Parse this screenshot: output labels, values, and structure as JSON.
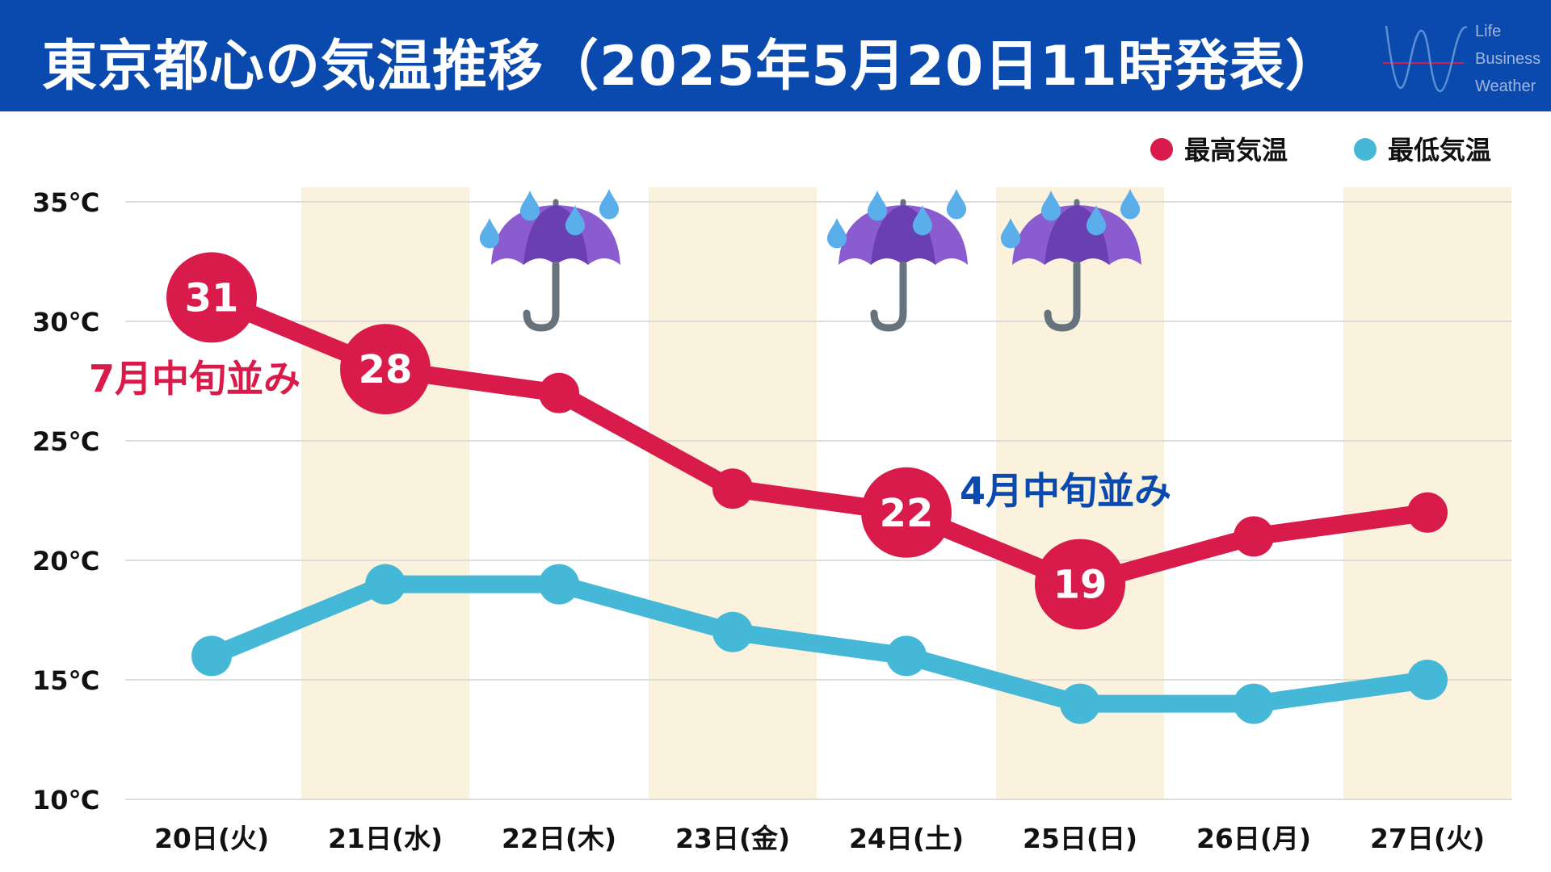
{
  "header": {
    "title": "東京都心の気温推移（2025年5月20日11時発表）",
    "logo_words": [
      "Life",
      "Business",
      "Weather"
    ]
  },
  "colors": {
    "header_bg": "#0a49ad",
    "high": "#d81b4a",
    "low": "#44b8d6",
    "band": "#faf2dc",
    "note_high": "#d81b4a",
    "note_low": "#0a49ad"
  },
  "legend": [
    {
      "label": "最高気温",
      "color": "#d81b4a"
    },
    {
      "label": "最低気温",
      "color": "#44b8d6"
    }
  ],
  "annotations": {
    "high_note": "7月中旬並み",
    "low_note": "4月中旬並み"
  },
  "chart_data": {
    "type": "line",
    "categories": [
      "20日(火)",
      "21日(水)",
      "22日(木)",
      "23日(金)",
      "24日(土)",
      "25日(日)",
      "26日(月)",
      "27日(火)"
    ],
    "series": [
      {
        "name": "最高気温",
        "values": [
          31,
          28,
          27,
          23,
          22,
          19,
          21,
          22
        ],
        "labeled": [
          31,
          28,
          null,
          null,
          22,
          19,
          null,
          null
        ]
      },
      {
        "name": "最低気温",
        "values": [
          16,
          19,
          19,
          17,
          16,
          14,
          14,
          15
        ]
      }
    ],
    "yticks": [
      "35℃",
      "30℃",
      "25℃",
      "20℃",
      "15℃",
      "10℃"
    ],
    "ylim": [
      10,
      35
    ],
    "highlighted_days": [
      "21日(水)",
      "23日(金)",
      "25日(日)",
      "27日(火)"
    ],
    "rain_days": [
      "22日(木)",
      "24日(土)",
      "25日(日)"
    ],
    "grid": true,
    "legend_position": "top-right"
  }
}
